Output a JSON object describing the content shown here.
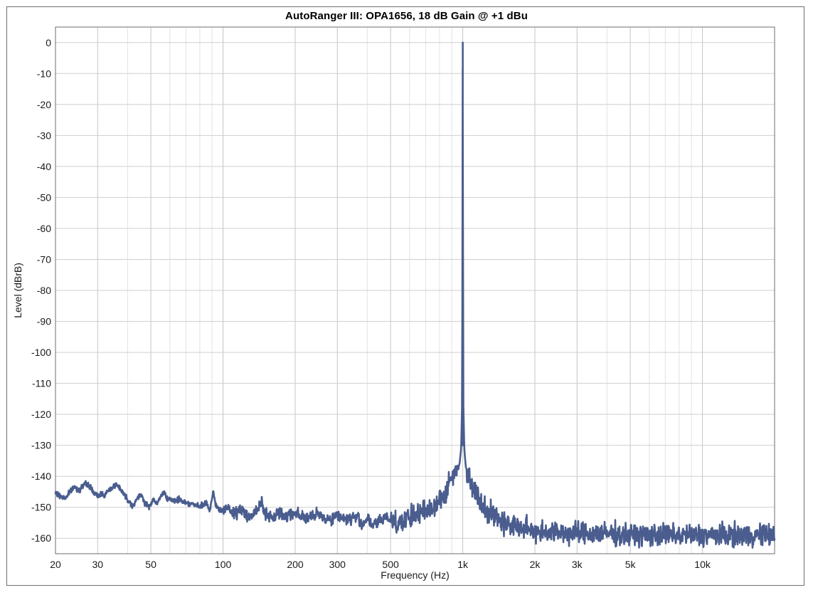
{
  "chart_data": {
    "type": "line",
    "title": "AutoRanger III: OPA1656, 18 dB Gain @ +1 dBu",
    "xlabel": "Frequency (Hz)",
    "ylabel": "Level (dBrB)",
    "xscale": "log",
    "xlim": [
      20,
      20000
    ],
    "ylim": [
      -165,
      5
    ],
    "grid": true,
    "x_ticks": [
      {
        "value": 20,
        "label": "20"
      },
      {
        "value": 30,
        "label": "30"
      },
      {
        "value": 50,
        "label": "50"
      },
      {
        "value": 100,
        "label": "100"
      },
      {
        "value": 200,
        "label": "200"
      },
      {
        "value": 300,
        "label": "300"
      },
      {
        "value": 500,
        "label": "500"
      },
      {
        "value": 1000,
        "label": "1k"
      },
      {
        "value": 2000,
        "label": "2k"
      },
      {
        "value": 3000,
        "label": "3k"
      },
      {
        "value": 5000,
        "label": "5k"
      },
      {
        "value": 10000,
        "label": "10k"
      }
    ],
    "y_ticks": [
      0,
      -10,
      -20,
      -30,
      -40,
      -50,
      -60,
      -70,
      -80,
      -90,
      -100,
      -110,
      -120,
      -130,
      -140,
      -150,
      -160
    ],
    "line_color": "#4a5d8e",
    "series": [
      {
        "name": "",
        "points": [
          [
            20,
            -145.5
          ],
          [
            21,
            -146.5
          ],
          [
            22,
            -147
          ],
          [
            23,
            -145
          ],
          [
            24,
            -143.5
          ],
          [
            25,
            -144.5
          ],
          [
            26,
            -143
          ],
          [
            27,
            -142.5
          ],
          [
            28,
            -143.5
          ],
          [
            29,
            -145.5
          ],
          [
            30,
            -146.5
          ],
          [
            31,
            -145.5
          ],
          [
            32,
            -146
          ],
          [
            34,
            -144
          ],
          [
            35,
            -143
          ],
          [
            36,
            -142.8
          ],
          [
            37,
            -143.5
          ],
          [
            38,
            -145
          ],
          [
            40,
            -147.5
          ],
          [
            42,
            -149.5
          ],
          [
            44,
            -147
          ],
          [
            46,
            -146
          ],
          [
            47,
            -148.5
          ],
          [
            49,
            -150
          ],
          [
            51,
            -147.5
          ],
          [
            53,
            -149
          ],
          [
            55,
            -146.5
          ],
          [
            57,
            -145
          ],
          [
            59,
            -147.5
          ],
          [
            62,
            -148
          ],
          [
            66,
            -147.5
          ],
          [
            70,
            -148.5
          ],
          [
            75,
            -149
          ],
          [
            80,
            -150
          ],
          [
            85,
            -148.5
          ],
          [
            88,
            -151
          ],
          [
            91,
            -145.5
          ],
          [
            94,
            -150
          ],
          [
            98,
            -151
          ],
          [
            103,
            -150
          ],
          [
            110,
            -152
          ],
          [
            120,
            -151
          ],
          [
            130,
            -153
          ],
          [
            140,
            -151
          ],
          [
            145,
            -148
          ],
          [
            150,
            -152
          ],
          [
            160,
            -154
          ],
          [
            170,
            -151.5
          ],
          [
            180,
            -153
          ],
          [
            200,
            -151.5
          ],
          [
            220,
            -153.5
          ],
          [
            250,
            -152.5
          ],
          [
            280,
            -154
          ],
          [
            300,
            -152.5
          ],
          [
            330,
            -154
          ],
          [
            360,
            -153
          ],
          [
            380,
            -155.5
          ],
          [
            400,
            -153.5
          ],
          [
            420,
            -156
          ],
          [
            450,
            -154.5
          ],
          [
            480,
            -153
          ],
          [
            500,
            -154
          ],
          [
            550,
            -155
          ],
          [
            600,
            -153.5
          ],
          [
            650,
            -152
          ],
          [
            700,
            -151.5
          ],
          [
            750,
            -150
          ],
          [
            800,
            -147.5
          ],
          [
            850,
            -145.5
          ],
          [
            880,
            -142
          ],
          [
            920,
            -139
          ],
          [
            950,
            -138
          ],
          [
            970,
            -136
          ],
          [
            985,
            -131
          ],
          [
            995,
            -115
          ],
          [
            1000,
            0
          ],
          [
            1005,
            -115
          ],
          [
            1015,
            -131
          ],
          [
            1030,
            -137
          ],
          [
            1060,
            -140
          ],
          [
            1100,
            -143
          ],
          [
            1150,
            -146.5
          ],
          [
            1200,
            -149
          ],
          [
            1300,
            -151.5
          ],
          [
            1400,
            -153.5
          ],
          [
            1500,
            -155
          ],
          [
            1700,
            -156.5
          ],
          [
            2000,
            -157.5
          ],
          [
            2500,
            -158
          ],
          [
            3000,
            -158.5
          ],
          [
            4000,
            -158.5
          ],
          [
            5000,
            -159
          ],
          [
            7000,
            -159
          ],
          [
            10000,
            -159
          ],
          [
            14000,
            -159
          ],
          [
            20000,
            -159
          ]
        ],
        "noise_floor_sd_db": 2.5
      }
    ]
  }
}
